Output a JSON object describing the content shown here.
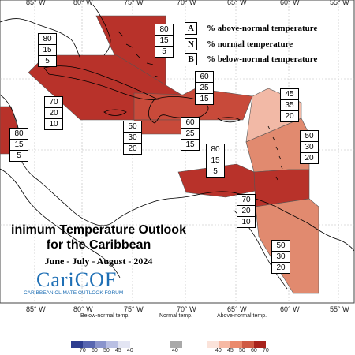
{
  "legend": {
    "above": {
      "key": "A",
      "text": "% above-normal temperature"
    },
    "normal": {
      "key": "N",
      "text": "% normal temperature"
    },
    "below": {
      "key": "B",
      "text": "% below-normal temperature"
    }
  },
  "title": {
    "line1": "inimum Temperature Outlook",
    "line2": "for the Caribbean",
    "period": "June - July - August - 2024"
  },
  "logo": {
    "name": "CariCOF",
    "tagline": "CARIBBEAN CLIMATE OUTLOOK FORUM"
  },
  "longitude_labels": [
    "85° W",
    "80° W",
    "75° W",
    "70° W",
    "65° W",
    "60° W",
    "55° W"
  ],
  "regions": [
    {
      "id": "bahamas",
      "above": "80",
      "normal": "15",
      "below": "5",
      "color": "#b8322a"
    },
    {
      "id": "cuba",
      "above": "80",
      "normal": "15",
      "below": "5",
      "color": "#b8322a"
    },
    {
      "id": "cayman-jamaica",
      "above": "70",
      "normal": "20",
      "below": "10",
      "color": "#b8322a"
    },
    {
      "id": "hispaniola-north",
      "above": "60",
      "normal": "25",
      "below": "15",
      "color": "#c84a3a"
    },
    {
      "id": "haiti-south",
      "above": "50",
      "normal": "30",
      "below": "20",
      "color": "#c84a3a"
    },
    {
      "id": "hispaniola-east",
      "above": "60",
      "normal": "25",
      "below": "15",
      "color": "#c84a3a"
    },
    {
      "id": "leeward",
      "above": "45",
      "normal": "35",
      "below": "20",
      "color": "#f2b9a6"
    },
    {
      "id": "windward",
      "above": "50",
      "normal": "30",
      "below": "20",
      "color": "#e18a6f"
    },
    {
      "id": "central-america",
      "above": "80",
      "normal": "15",
      "below": "5",
      "color": "#b8322a"
    },
    {
      "id": "abc-islands",
      "above": "80",
      "normal": "15",
      "below": "5",
      "color": "#b8322a"
    },
    {
      "id": "trinidad",
      "above": "70",
      "normal": "20",
      "below": "10",
      "color": "#b8322a"
    },
    {
      "id": "guianas",
      "above": "50",
      "normal": "30",
      "below": "20",
      "color": "#e18a6f"
    }
  ],
  "colorbar": {
    "below_title": "Below-normal temp.",
    "normal_title": "Normal temp.",
    "above_title": "Above-normal temp.",
    "below_ticks": [
      "70",
      "60",
      "50",
      "45",
      "40"
    ],
    "normal_tick": "40",
    "above_ticks": [
      "40",
      "45",
      "50",
      "60",
      "70"
    ],
    "below_colors": [
      "#2e3d8f",
      "#5866b0",
      "#8a94cc",
      "#b9bfe3",
      "#e3e5f3"
    ],
    "normal_color": "#a9a9a9",
    "above_colors": [
      "#fbe3da",
      "#f6b9a4",
      "#ea8a6c",
      "#cf5a43",
      "#a8231c"
    ]
  }
}
